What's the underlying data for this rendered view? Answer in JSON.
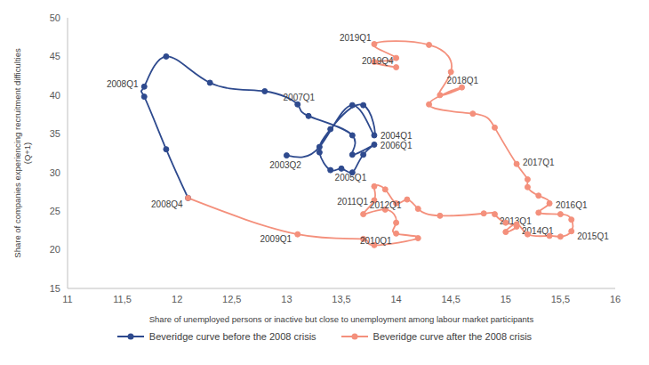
{
  "chart_data": {
    "type": "line",
    "x_label": "Share of unemployed persons or inactive but close to unemployment among labour market participants",
    "y_label": "Share of companies experiencing recruitment difficulties (Q+1)",
    "xlim": [
      11,
      16
    ],
    "xticks": [
      11,
      {
        "value": 11.5,
        "label": "11,5"
      },
      12,
      {
        "value": 12.5,
        "label": "12,5"
      },
      13,
      {
        "value": 13.5,
        "label": "13,5"
      },
      14,
      {
        "value": 14.5,
        "label": "14,5"
      },
      15,
      {
        "value": 15.5,
        "label": "15,5"
      },
      16
    ],
    "ylim": [
      15,
      50
    ],
    "yticks": [
      15,
      20,
      25,
      30,
      35,
      40,
      45,
      50
    ],
    "grid": false,
    "legend": "bottom",
    "series": [
      {
        "name": "Beveridge curve before the 2008 crisis",
        "color": "#2E4A8E",
        "marker": "circle",
        "line_style": "solid",
        "x": [
          13.0,
          13.3,
          13.6,
          13.8,
          13.7,
          13.4,
          13.3,
          13.4,
          13.5,
          13.6,
          13.7,
          13.8,
          13.6,
          13.6,
          13.2,
          13.1,
          12.8,
          12.3,
          11.9,
          11.7,
          11.7,
          11.9,
          12.1
        ],
        "values": [
          32.2,
          33.3,
          38.7,
          34.8,
          38.7,
          35.6,
          32.6,
          30.3,
          30.5,
          30.0,
          32.3,
          33.6,
          32.3,
          34.8,
          37.3,
          38.8,
          40.5,
          41.6,
          45.0,
          41.1,
          39.8,
          33.0,
          26.7
        ],
        "labels": [
          "2003Q2",
          null,
          null,
          "2004Q1",
          null,
          null,
          null,
          "2005Q1",
          null,
          null,
          null,
          "2006Q1",
          null,
          null,
          null,
          "2007Q1",
          null,
          null,
          null,
          "2008Q1",
          null,
          null,
          "2008Q4"
        ]
      },
      {
        "name": "Beveridge curve after the 2008 crisis",
        "color": "#F4907C",
        "marker": "circle",
        "line_style": "solid",
        "x": [
          12.1,
          13.1,
          13.7,
          13.8,
          14.2,
          14.0,
          14.0,
          13.9,
          13.7,
          13.8,
          13.8,
          13.9,
          14.0,
          14.1,
          14.2,
          14.4,
          14.8,
          14.9,
          15.0,
          15.1,
          15.0,
          15.1,
          15.2,
          15.4,
          15.5,
          15.6,
          15.6,
          15.5,
          15.3,
          15.4,
          15.3,
          15.2,
          15.2,
          15.1,
          14.9,
          14.7,
          14.3,
          14.6,
          14.4,
          14.5,
          14.3,
          13.8,
          14.0,
          13.8,
          14.0
        ],
        "values": [
          26.7,
          22.0,
          21.4,
          20.6,
          21.5,
          22.1,
          23.5,
          25.2,
          24.6,
          26.4,
          28.2,
          27.8,
          26.0,
          26.5,
          25.3,
          24.4,
          24.7,
          24.6,
          23.5,
          23.0,
          22.3,
          23.3,
          22.0,
          21.8,
          21.7,
          22.4,
          23.9,
          24.6,
          24.8,
          26.0,
          27.0,
          28.1,
          29.1,
          31.1,
          35.8,
          37.6,
          38.8,
          41.0,
          40.0,
          43.0,
          46.5,
          46.6,
          44.8,
          44.3,
          43.6
        ],
        "labels": [
          null,
          "2009Q1",
          null,
          null,
          null,
          "2010Q1",
          null,
          null,
          null,
          "2011Q1",
          null,
          null,
          null,
          "2012Q1",
          null,
          null,
          null,
          "2013Q1",
          null,
          null,
          null,
          "2014Q1",
          null,
          null,
          null,
          "2015Q1",
          null,
          null,
          null,
          "2016Q1",
          null,
          null,
          null,
          "2017Q1",
          null,
          null,
          null,
          "2018Q1",
          null,
          null,
          null,
          "2019Q1",
          null,
          null,
          "2019Q4"
        ]
      }
    ]
  }
}
